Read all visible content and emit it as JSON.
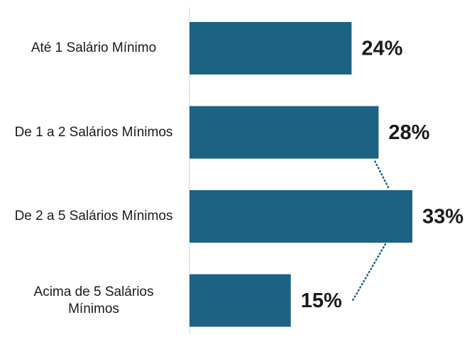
{
  "chart_data": {
    "type": "bar",
    "orientation": "horizontal",
    "categories": [
      "Até 1 Salário Mínimo",
      "De 1 a 2 Salários Mínimos",
      "De 2 a 5 Salários Mínimos",
      "Acima de 5 Salários Mínimos"
    ],
    "values": [
      24,
      28,
      33,
      15
    ],
    "value_labels": [
      "24%",
      "28%",
      "33%",
      "15%"
    ],
    "color": "#1b6283",
    "xlim": [
      0,
      35
    ]
  }
}
